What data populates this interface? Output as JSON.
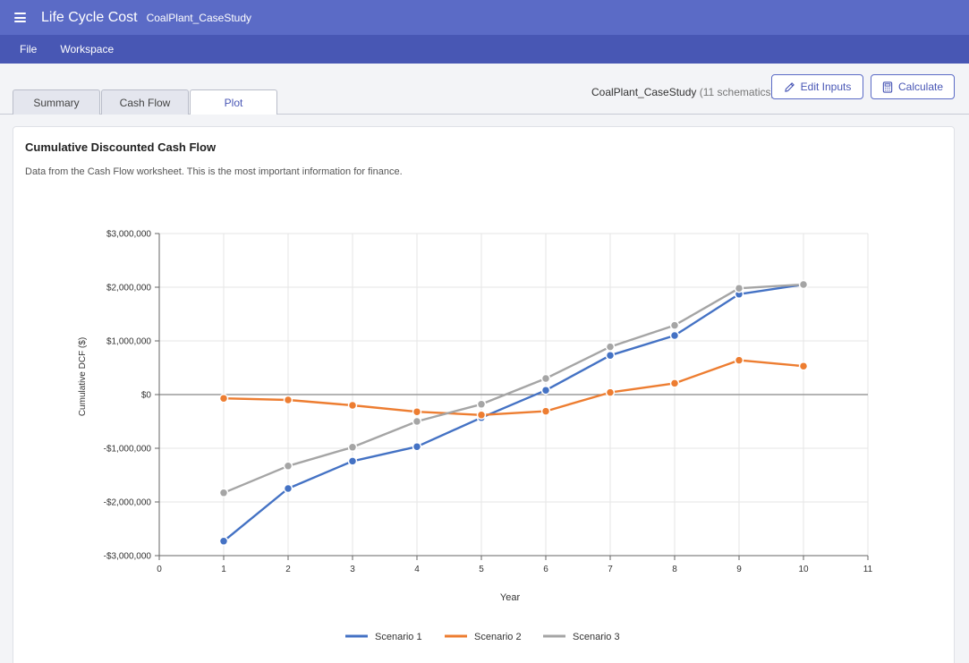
{
  "header": {
    "app_title": "Life Cycle Cost",
    "file_name": "CoalPlant_CaseStudy"
  },
  "menu": [
    "File",
    "Workspace"
  ],
  "tabs": [
    {
      "label": "Summary",
      "active": false
    },
    {
      "label": "Cash Flow",
      "active": false
    },
    {
      "label": "Plot",
      "active": true
    }
  ],
  "case_info": {
    "name": "CoalPlant_CaseStudy",
    "count": "(11 schematics)"
  },
  "buttons": {
    "edit_inputs": "Edit Inputs",
    "calculate": "Calculate"
  },
  "card": {
    "title": "Cumulative Discounted Cash Flow",
    "description": "Data from the Cash Flow worksheet. This is the most important information for finance."
  },
  "colors": {
    "header": "#5b6bc6",
    "menubar": "#4857b4",
    "accent": "#4856b5"
  },
  "chart_data": {
    "type": "line",
    "title": "",
    "xlabel": "Year",
    "ylabel": "Cumulative DCF ($)",
    "xlim": [
      0,
      11
    ],
    "ylim": [
      -3000000,
      3000000
    ],
    "x_ticks": [
      "0",
      "1",
      "2",
      "3",
      "4",
      "5",
      "6",
      "7",
      "8",
      "9",
      "10",
      "11"
    ],
    "y_ticks": [
      {
        "value": 3000000,
        "label": "$3,000,000"
      },
      {
        "value": 2000000,
        "label": "$2,000,000"
      },
      {
        "value": 1000000,
        "label": "$1,000,000"
      },
      {
        "value": 0,
        "label": "$0"
      },
      {
        "value": -1000000,
        "label": "-$1,000,000"
      },
      {
        "value": -2000000,
        "label": "-$2,000,000"
      },
      {
        "value": -3000000,
        "label": "-$3,000,000"
      }
    ],
    "grid": true,
    "legend_position": "bottom",
    "x": [
      1,
      2,
      3,
      4,
      5,
      6,
      7,
      8,
      9,
      10
    ],
    "series": [
      {
        "name": "Scenario 1",
        "color": "#4472c4",
        "values": [
          -2730000,
          -1750000,
          -1240000,
          -970000,
          -430000,
          80000,
          730000,
          1100000,
          1870000,
          2050000
        ]
      },
      {
        "name": "Scenario 2",
        "color": "#ed7d31",
        "values": [
          -70000,
          -100000,
          -200000,
          -320000,
          -380000,
          -310000,
          40000,
          210000,
          640000,
          530000
        ]
      },
      {
        "name": "Scenario 3",
        "color": "#a5a5a5",
        "values": [
          -1830000,
          -1330000,
          -980000,
          -500000,
          -180000,
          300000,
          890000,
          1290000,
          1980000,
          2050000
        ]
      }
    ]
  }
}
